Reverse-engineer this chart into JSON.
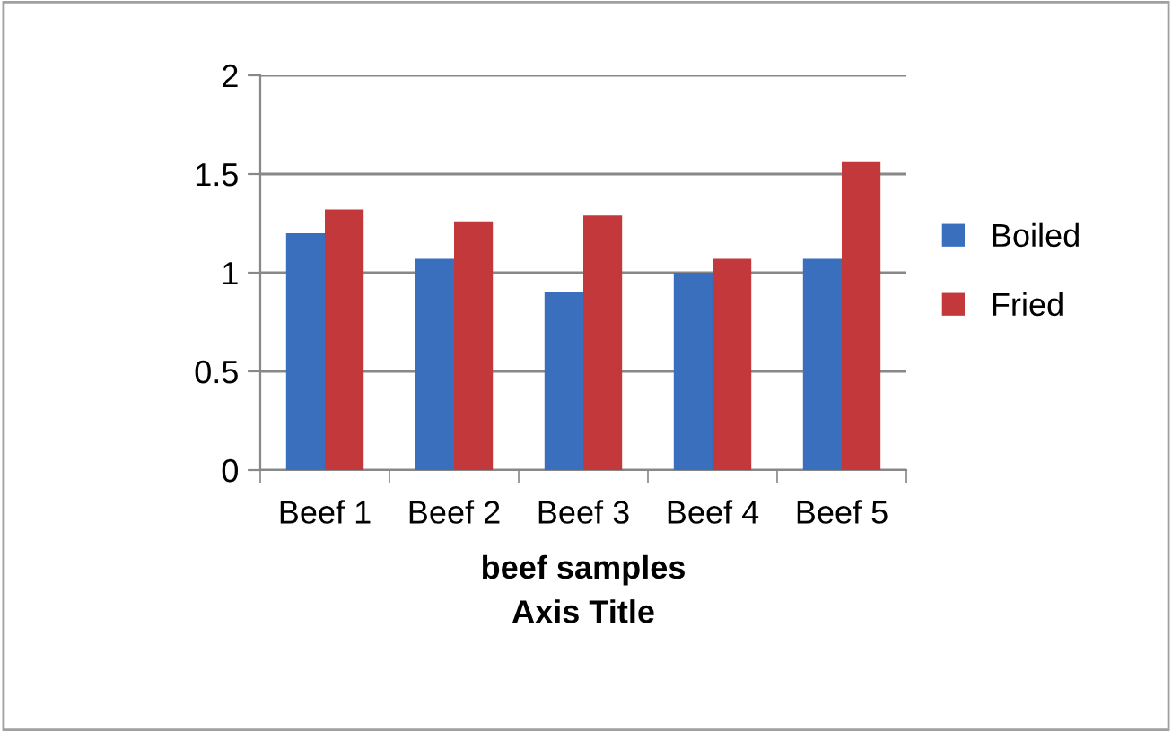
{
  "chart_data": {
    "type": "bar",
    "xlabel": "beef samples\nAxis Title",
    "categories": [
      "Beef 1",
      "Beef 2",
      "Beef 3",
      "Beef 4",
      "Beef 5"
    ],
    "series": [
      {
        "name": "Boiled",
        "color": "#3a6fbd",
        "values": [
          1.2,
          1.07,
          0.9,
          1.0,
          1.07
        ]
      },
      {
        "name": "Fried",
        "color": "#c3393b",
        "values": [
          1.32,
          1.26,
          1.29,
          1.07,
          1.56
        ]
      }
    ],
    "ylim": [
      0,
      2
    ],
    "yticks": [
      0,
      0.5,
      1,
      1.5,
      2
    ],
    "grid": "y",
    "legend": "right"
  }
}
